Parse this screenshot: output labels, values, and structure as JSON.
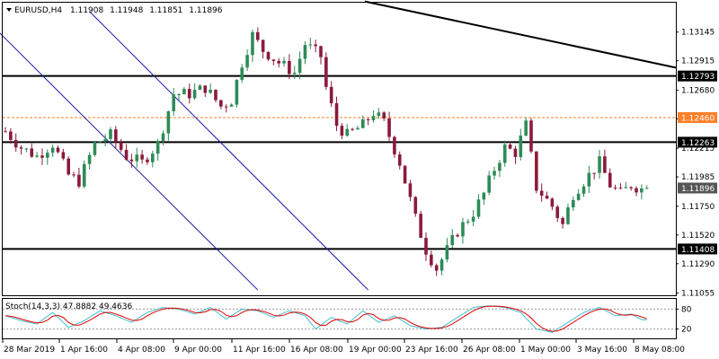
{
  "header": {
    "symbol": "EURUSD,H4",
    "ohlc": [
      "1.11908",
      "1.11948",
      "1.11851",
      "1.11896"
    ]
  },
  "indicator": {
    "label": "Stoch(14,3,3) 47.8882 49.4636",
    "levels": [
      80,
      20
    ],
    "k_color": "#40c0d0",
    "d_color": "#e00000"
  },
  "colors": {
    "bull": "#2e8b57",
    "bear": "#8b1a3a",
    "resistance_line": "#000000",
    "trendline": "#000000",
    "channel": "#1a1aa6",
    "dashed_level": "#ff7f2a",
    "tag_bg": "#000000",
    "tag_fg": "#ffffff",
    "price_tag_bg": "#ff7f2a",
    "current_tag_bg": "#555555"
  },
  "chart_data": [
    {
      "type": "candlestick",
      "title": "EURUSD,H4",
      "ylim": [
        1.1103,
        1.1338
      ],
      "y_ticks": [
        "1.13145",
        "1.12915",
        "1.12680",
        "1.12450",
        "1.12215",
        "1.11985",
        "1.11750",
        "1.11520",
        "1.11290",
        "1.11055"
      ],
      "x_ticks": [
        "28 Mar 2019",
        "1 Apr 16:00",
        "4 Apr 08:00",
        "9 Apr 00:00",
        "11 Apr 16:00",
        "16 Apr 08:00",
        "19 Apr 00:00",
        "23 Apr 16:00",
        "26 Apr 08:00",
        "1 May 00:00",
        "3 May 16:00",
        "8 May 08:00"
      ],
      "horizontal_levels": [
        {
          "price": 1.12793,
          "label": "1.12793",
          "style": "solid"
        },
        {
          "price": 1.12263,
          "label": "1.12263",
          "style": "solid"
        },
        {
          "price": 1.11408,
          "label": "1.11408",
          "style": "solid"
        },
        {
          "price": 1.1246,
          "label": "1.12460",
          "style": "dashed"
        }
      ],
      "current_price": {
        "price": 1.11896,
        "label": "1.11896"
      },
      "trendline": {
        "from": [
          0,
          1.1339
        ],
        "to": [
          123,
          1.1286
        ]
      },
      "channel": {
        "upper": [
          [
            -4,
            1.1326
          ],
          [
            48,
            1.1108
          ]
        ],
        "lower": [
          [
            16,
            1.1331
          ],
          [
            69,
            1.1108
          ]
        ]
      },
      "anchors": [
        [
          0,
          1.1235
        ],
        [
          3,
          1.1222
        ],
        [
          6,
          1.1215
        ],
        [
          9,
          1.1225
        ],
        [
          12,
          1.12
        ],
        [
          14,
          1.1195
        ],
        [
          17,
          1.1225
        ],
        [
          20,
          1.1232
        ],
        [
          23,
          1.1215
        ],
        [
          26,
          1.121
        ],
        [
          29,
          1.1225
        ],
        [
          32,
          1.1265
        ],
        [
          35,
          1.1265
        ],
        [
          38,
          1.127
        ],
        [
          41,
          1.1255
        ],
        [
          43,
          1.126
        ],
        [
          45,
          1.129
        ],
        [
          47,
          1.1312
        ],
        [
          49,
          1.13
        ],
        [
          52,
          1.129
        ],
        [
          55,
          1.1282
        ],
        [
          57,
          1.1305
        ],
        [
          60,
          1.1295
        ],
        [
          61,
          1.127
        ],
        [
          63,
          1.124
        ],
        [
          65,
          1.1232
        ],
        [
          68,
          1.124
        ],
        [
          70,
          1.125
        ],
        [
          72,
          1.1242
        ],
        [
          75,
          1.121
        ],
        [
          78,
          1.1165
        ],
        [
          80,
          1.114
        ],
        [
          82,
          1.1125
        ],
        [
          84,
          1.114
        ],
        [
          86,
          1.1155
        ],
        [
          89,
          1.117
        ],
        [
          91,
          1.1185
        ],
        [
          93,
          1.1205
        ],
        [
          95,
          1.1222
        ],
        [
          97,
          1.1218
        ],
        [
          99,
          1.124
        ],
        [
          101,
          1.119
        ],
        [
          104,
          1.1175
        ],
        [
          106,
          1.116
        ],
        [
          108,
          1.1185
        ],
        [
          111,
          1.12
        ],
        [
          113,
          1.121
        ],
        [
          115,
          1.1192
        ],
        [
          117,
          1.1185
        ],
        [
          119,
          1.1192
        ],
        [
          121,
          1.1189
        ]
      ],
      "stoch_anchors": [
        [
          0,
          60
        ],
        [
          3,
          45
        ],
        [
          6,
          35
        ],
        [
          9,
          70
        ],
        [
          12,
          25
        ],
        [
          15,
          45
        ],
        [
          18,
          75
        ],
        [
          21,
          60
        ],
        [
          24,
          40
        ],
        [
          27,
          70
        ],
        [
          30,
          85
        ],
        [
          33,
          80
        ],
        [
          36,
          65
        ],
        [
          39,
          85
        ],
        [
          42,
          50
        ],
        [
          45,
          80
        ],
        [
          48,
          75
        ],
        [
          51,
          55
        ],
        [
          54,
          75
        ],
        [
          57,
          60
        ],
        [
          59,
          20
        ],
        [
          62,
          55
        ],
        [
          65,
          35
        ],
        [
          68,
          75
        ],
        [
          71,
          40
        ],
        [
          74,
          60
        ],
        [
          77,
          30
        ],
        [
          80,
          20
        ],
        [
          83,
          25
        ],
        [
          86,
          55
        ],
        [
          89,
          85
        ],
        [
          92,
          90
        ],
        [
          95,
          85
        ],
        [
          98,
          70
        ],
        [
          101,
          20
        ],
        [
          104,
          10
        ],
        [
          107,
          40
        ],
        [
          110,
          70
        ],
        [
          113,
          85
        ],
        [
          116,
          60
        ],
        [
          119,
          65
        ],
        [
          121,
          48
        ]
      ]
    }
  ]
}
